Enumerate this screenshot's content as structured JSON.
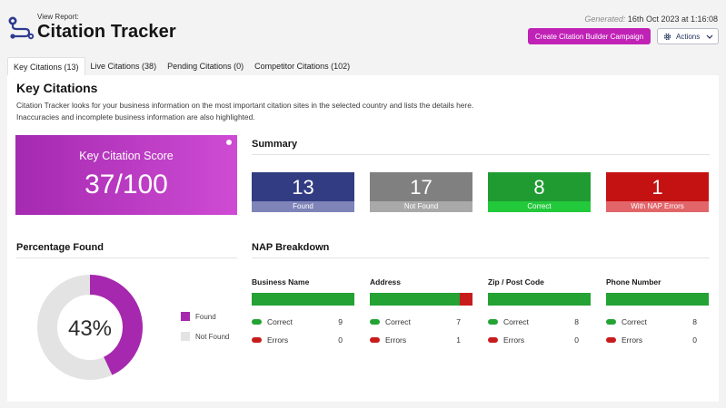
{
  "header": {
    "view_report": "View Report:",
    "title": "Citation Tracker",
    "generated_label": "Generated:",
    "generated_value": "16th Oct 2023 at 1:16:08",
    "create_button": "Create Citation Builder Campaign",
    "actions_button": "Actions"
  },
  "tabs": [
    {
      "label": "Key Citations (13)",
      "active": true
    },
    {
      "label": "Live Citations (38)",
      "active": false
    },
    {
      "label": "Pending Citations (0)",
      "active": false
    },
    {
      "label": "Competitor Citations (102)",
      "active": false
    }
  ],
  "main": {
    "title": "Key Citations",
    "description": "Citation Tracker looks for your business information on the most important citation sites in the selected country and lists the details here. Inaccuracies and incomplete business information are also highlighted."
  },
  "score": {
    "label": "Key Citation Score",
    "value": "37/100"
  },
  "summary": {
    "title": "Summary",
    "stats": [
      {
        "value": "13",
        "label": "Found",
        "color": "#323c82",
        "label_color": "#7e84b8"
      },
      {
        "value": "17",
        "label": "Not Found",
        "color": "#808080",
        "label_color": "#a9a9a9"
      },
      {
        "value": "8",
        "label": "Correct",
        "color": "#1f9b32",
        "label_color": "#22c93b"
      },
      {
        "value": "1",
        "label": "With NAP Errors",
        "color": "#c41212",
        "label_color": "#e2656a"
      }
    ]
  },
  "percentage": {
    "title": "Percentage Found",
    "value": "43%",
    "fraction_found": 0.43,
    "found_color": "#a628ae",
    "not_found_color": "#e3e3e3",
    "legend": [
      {
        "label": "Found",
        "color": "#a628ae"
      },
      {
        "label": "Not Found",
        "color": "#e3e3e3"
      }
    ]
  },
  "nap": {
    "title": "NAP Breakdown",
    "correct_label": "Correct",
    "errors_label": "Errors",
    "correct_color": "#24a233",
    "error_color": "#c81c1c",
    "columns": [
      {
        "name": "Business Name",
        "correct": "9",
        "errors": "0",
        "correct_fraction": 1.0
      },
      {
        "name": "Address",
        "correct": "7",
        "errors": "1",
        "correct_fraction": 0.875
      },
      {
        "name": "Zip / Post Code",
        "correct": "8",
        "errors": "0",
        "correct_fraction": 1.0
      },
      {
        "name": "Phone Number",
        "correct": "8",
        "errors": "0",
        "correct_fraction": 1.0
      }
    ]
  }
}
